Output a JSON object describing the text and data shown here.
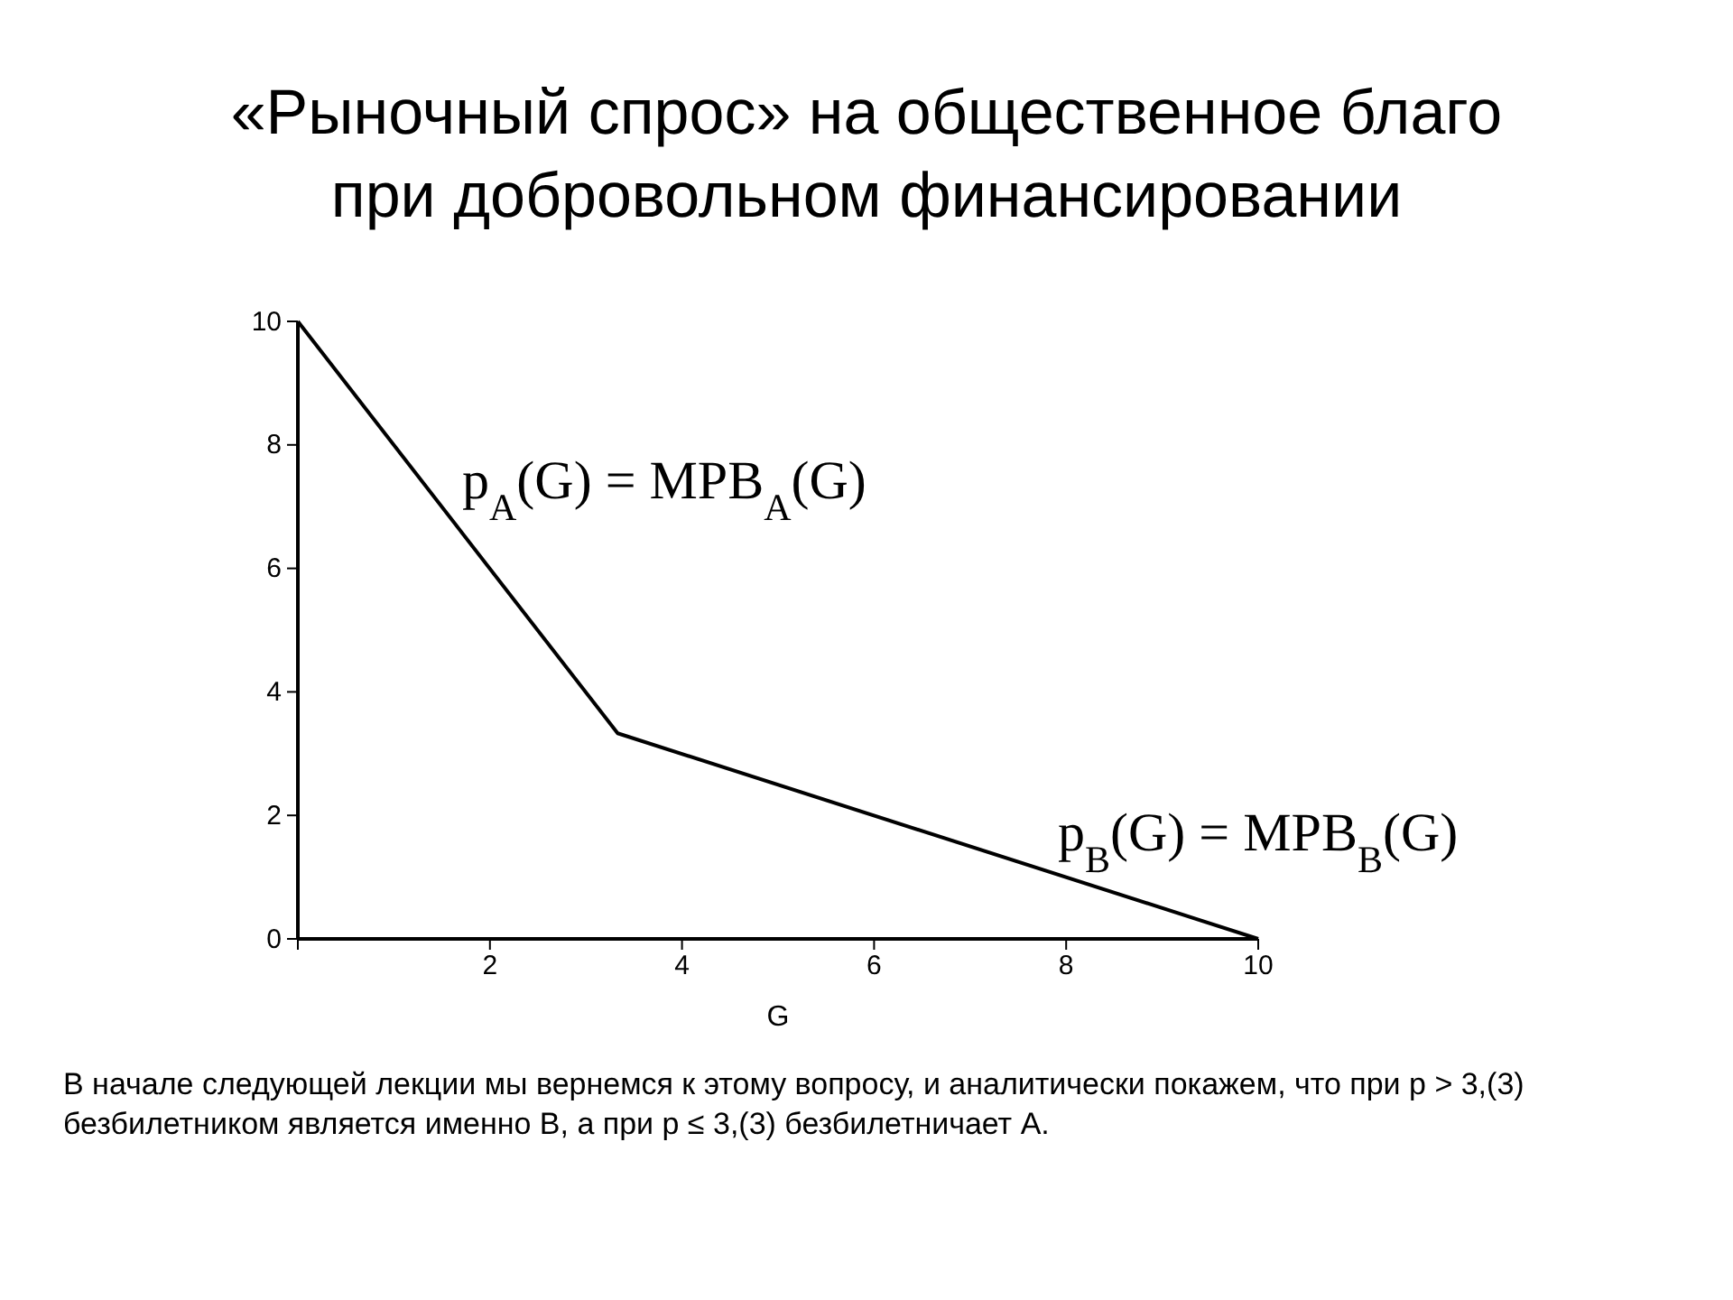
{
  "chart_data": {
    "type": "line",
    "title": "«Рыночный спрос» на общественное благо при добровольном финансировании",
    "xlabel": "G",
    "x": [
      0,
      3.33,
      10
    ],
    "series": [
      {
        "color": "#000000",
        "values": [
          10,
          3.33,
          0
        ]
      }
    ],
    "xlim": [
      0,
      10
    ],
    "xticks": [
      {
        "value": 0,
        "label": null
      },
      2,
      4,
      6,
      8,
      10
    ],
    "ylim": [
      0,
      10
    ],
    "yticks": [
      0,
      2,
      4,
      6,
      8,
      10
    ],
    "grid": false,
    "marker": "none",
    "line_style": "solid",
    "annotations": [
      "p$_{A}$(G) = MPB$_{A}$(G)",
      "p$_{B}$(G) = MPB$_{B}$(G)",
      "В начале следующей лекции мы вернемся к этому вопросу, и аналитически покажем, что при p > 3,(3) безбилетником является именно B, а при p ≤ 3,(3) безбилетничает A."
    ]
  }
}
